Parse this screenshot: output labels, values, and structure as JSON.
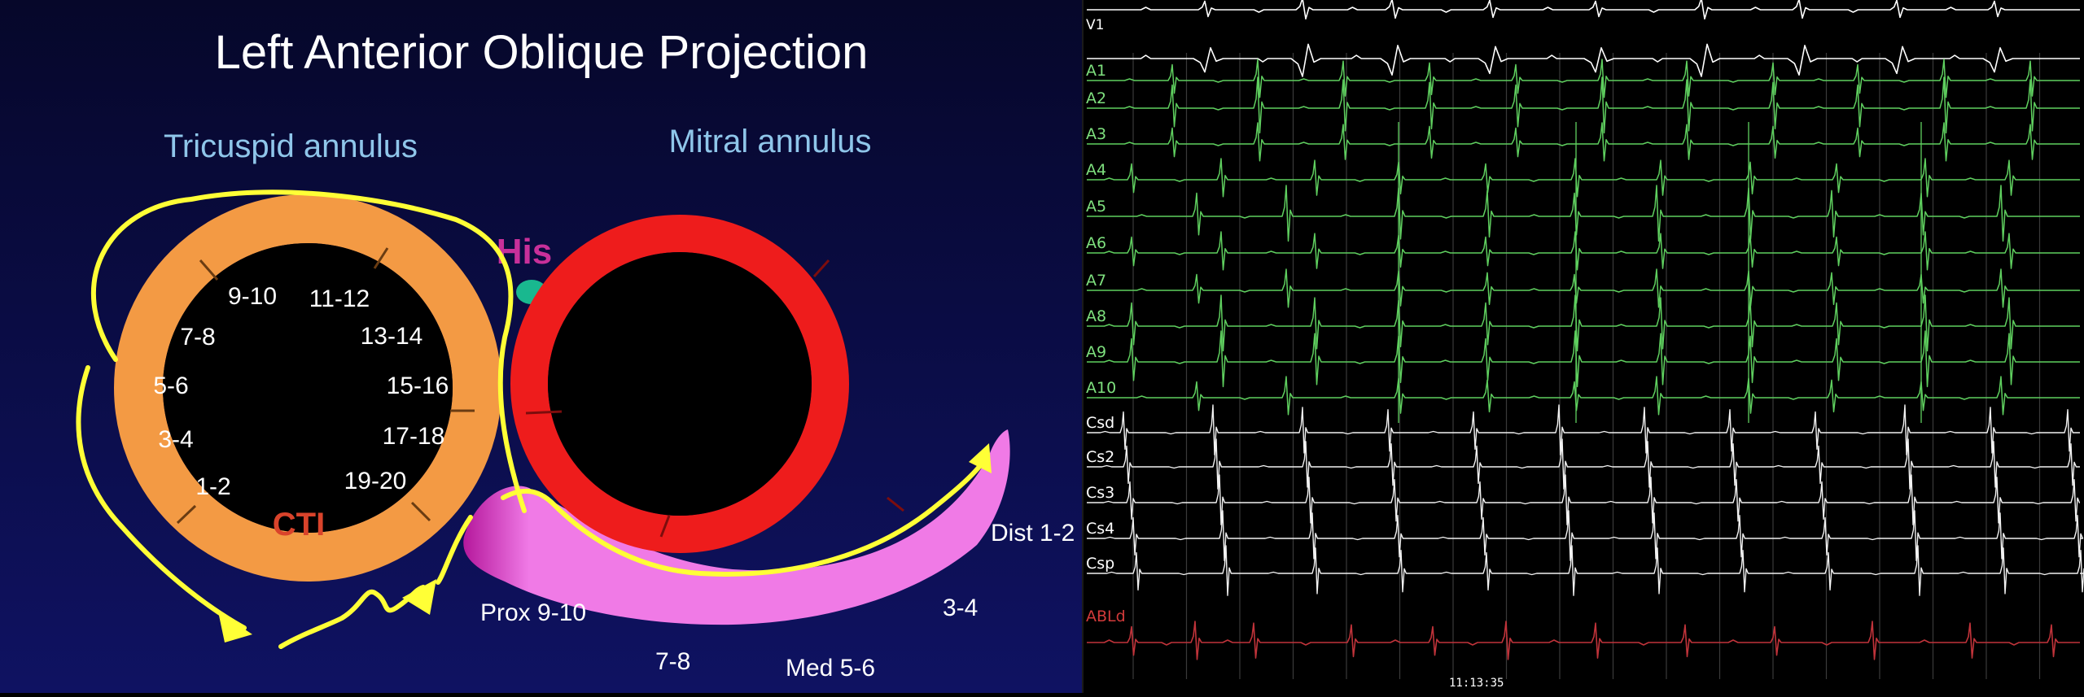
{
  "diagram": {
    "title": "Left Anterior Oblique Projection",
    "tricuspid_label": "Tricuspid annulus",
    "mitral_label": "Mitral annulus",
    "his_label": "His",
    "cti_label": "CTI",
    "halo_poles": [
      "9-10",
      "11-12",
      "7-8",
      "13-14",
      "5-6",
      "15-16",
      "3-4",
      "17-18",
      "1-2",
      "19-20"
    ],
    "cs_poles": {
      "prox": "Prox 9-10",
      "p78": "7-8",
      "med": "Med 5-6",
      "p34": "3-4",
      "dist": "Dist 1-2"
    },
    "colors": {
      "background_top": "#06072a",
      "background_bottom": "#0f1262",
      "title_text": "#ffffff",
      "annulus_label": "#8fc6ea",
      "tricuspid_ring": "#f39a44",
      "mitral_ring": "#ee1c1c",
      "his_text": "#c8309a",
      "his_bundle": "#19b88f",
      "cti_text": "#d9432b",
      "coronary_sinus": "#f07ae6",
      "activation_arrow": "#ffff36"
    },
    "icons": [
      "activation-arrow-icon",
      "his-bundle-icon"
    ]
  },
  "egm": {
    "channels": [
      "V1",
      "A1",
      "A2",
      "A3",
      "A4",
      "A5",
      "A6",
      "A7",
      "A8",
      "A9",
      "A10",
      "Csd",
      "Cs2",
      "Cs3",
      "Cs4",
      "Csp",
      "ABLd"
    ],
    "timestamp": "11:13:35",
    "colors": {
      "background": "#000000",
      "surface_trace": "#ffffff",
      "halo_trace": "#5fcf5f",
      "cs_trace": "#f2f2f2",
      "abl_trace": "#c0333a",
      "label_white": "#ffffff",
      "label_green": "#7ee07e",
      "label_red": "#d23a3a"
    }
  }
}
